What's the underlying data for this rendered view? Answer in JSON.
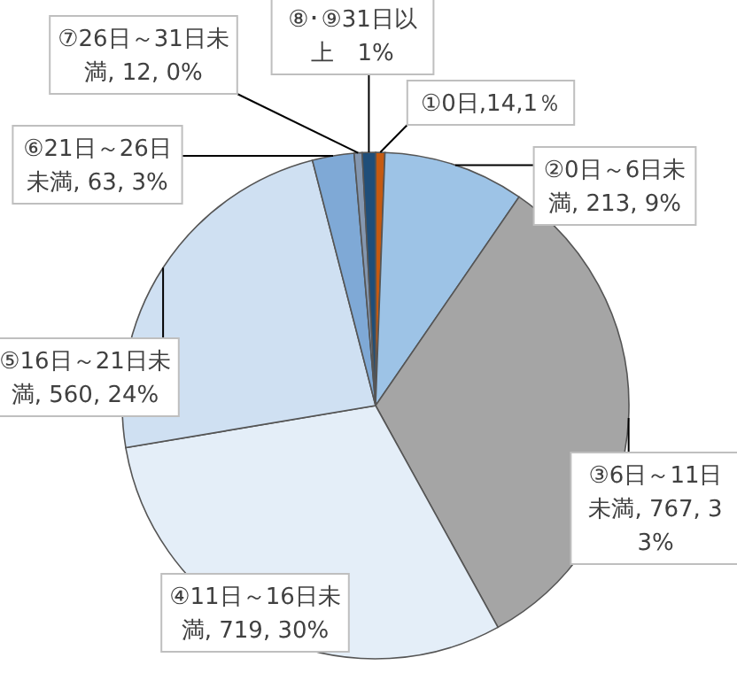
{
  "chart_data": {
    "type": "pie",
    "categories": [
      "①0日,14,1％",
      "②0日～6日未満, 213, 9%",
      "③6日～11日未満, 767, 33%",
      "④11日～16日未満, 719, 30%",
      "⑤16日～21日未満, 560, 24%",
      "⑥21日～26日未満, 63, 3%",
      "⑦26日～31日未満, 12, 0%",
      "⑧･⑨31日以上　1%"
    ],
    "values": [
      14,
      213,
      767,
      719,
      560,
      63,
      12,
      20
    ],
    "colors": [
      "#c55a11",
      "#9dc3e6",
      "#a5a5a5",
      "#e4eef8",
      "#cfe0f2",
      "#7fa9d6",
      "#8497b0",
      "#1f4e79"
    ]
  }
}
